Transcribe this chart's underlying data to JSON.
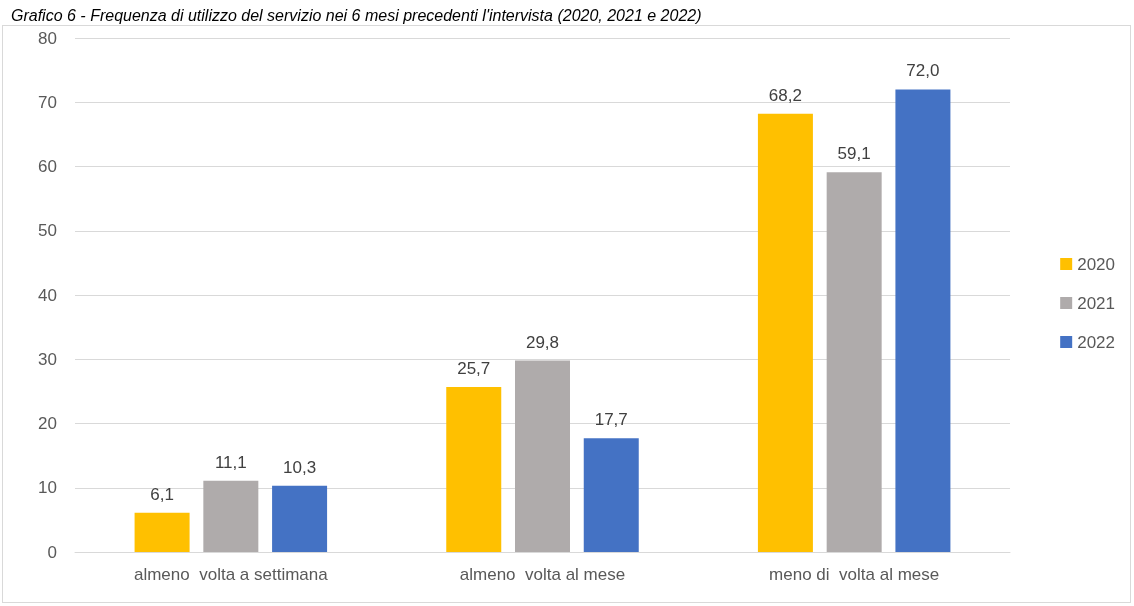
{
  "chart_data": {
    "type": "bar",
    "title": "Grafico 6 - Frequenza di utilizzo del servizio nei 6 mesi precedenti l'intervista (2020, 2021 e 2022)",
    "categories": [
      "almeno  volta a settimana",
      "almeno  volta al mese",
      "meno di  volta al mese"
    ],
    "series": [
      {
        "name": "2020",
        "color": "#ffc000",
        "values": [
          6.1,
          25.7,
          68.2
        ],
        "value_labels": [
          "6,1",
          "25,7",
          "68,2"
        ]
      },
      {
        "name": "2021",
        "color": "#afabab",
        "values": [
          11.1,
          29.8,
          59.1
        ],
        "value_labels": [
          "11,1",
          "29,8",
          "59,1"
        ]
      },
      {
        "name": "2022",
        "color": "#4472c4",
        "values": [
          10.3,
          17.7,
          72.0
        ],
        "value_labels": [
          "10,3",
          "17,7",
          "72,0"
        ]
      }
    ],
    "ylim": [
      0,
      80
    ],
    "yticks": [
      0,
      10,
      20,
      30,
      40,
      50,
      60,
      70,
      80
    ],
    "grid": "y",
    "legend": "right"
  }
}
